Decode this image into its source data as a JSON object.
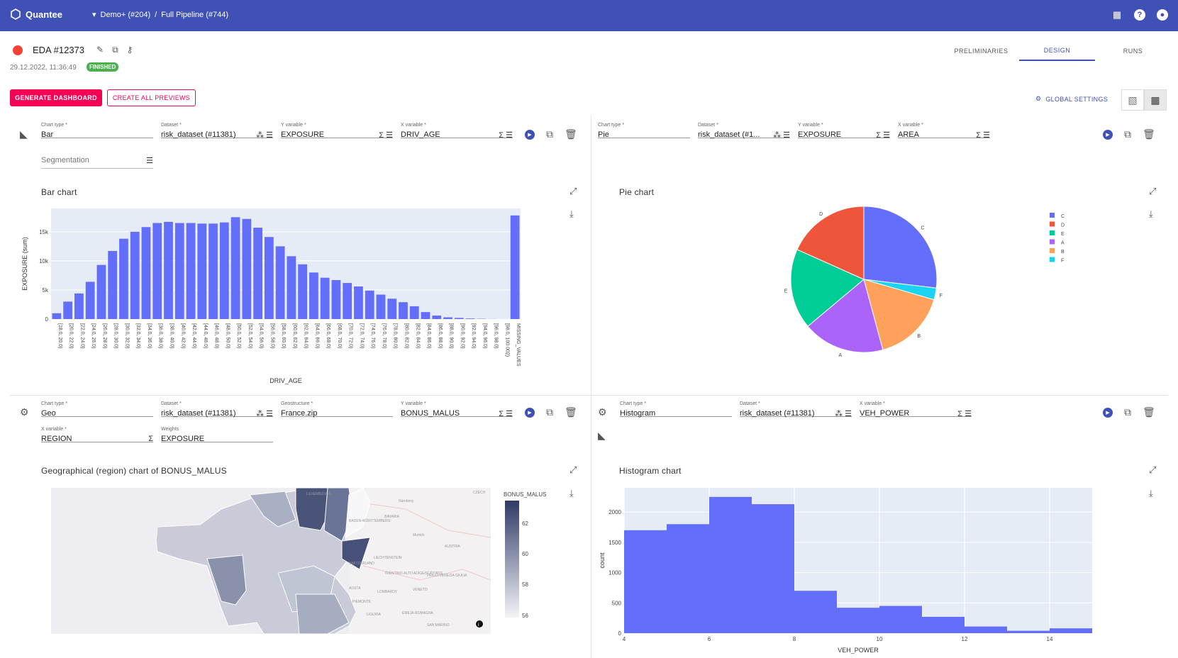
{
  "app": {
    "name": "Quantee",
    "breadcrumb": [
      "Demo+ (#204)",
      "/",
      "Full Pipeline (#744)"
    ]
  },
  "header": {
    "title": "EDA #12373",
    "date": "29.12.2022, 11:36:49",
    "status": "FINISHED"
  },
  "tabs": [
    "PRELIMINARIES",
    "DESIGN",
    "RUNS"
  ],
  "active_tab": "DESIGN",
  "actions": {
    "generate": "GENERATE DASHBOARD",
    "previews": "CREATE ALL PREVIEWS",
    "global": "GLOBAL SETTINGS"
  },
  "panels": [
    {
      "fields": [
        {
          "label": "Chart type *",
          "value": "Bar"
        },
        {
          "label": "Dataset *",
          "value": "risk_dataset (#11381)"
        },
        {
          "label": "Y variable *",
          "value": "EXPOSURE"
        },
        {
          "label": "X variable *",
          "value": "DRIV_AGE"
        },
        {
          "label": "",
          "value": "Segmentation"
        }
      ],
      "title": "Bar chart"
    },
    {
      "fields": [
        {
          "label": "Chart type *",
          "value": "Pie"
        },
        {
          "label": "Dataset *",
          "value": "risk_dataset (#1..."
        },
        {
          "label": "Y variable *",
          "value": "EXPOSURE"
        },
        {
          "label": "X variable *",
          "value": "AREA"
        }
      ],
      "title": "Pie chart"
    },
    {
      "fields": [
        {
          "label": "Chart type *",
          "value": "Geo"
        },
        {
          "label": "Dataset *",
          "value": "risk_dataset (#11381)"
        },
        {
          "label": "Geostructure *",
          "value": "France.zip"
        },
        {
          "label": "Y variable *",
          "value": "BONUS_MALUS"
        },
        {
          "label": "X variable *",
          "value": "REGION"
        },
        {
          "label": "Weights",
          "value": "EXPOSURE"
        }
      ],
      "title": "Geographical (region) chart of BONUS_MALUS"
    },
    {
      "fields": [
        {
          "label": "Chart type *",
          "value": "Histogram"
        },
        {
          "label": "Dataset *",
          "value": "risk_dataset (#11381)"
        },
        {
          "label": "X variable *",
          "value": "VEH_POWER"
        }
      ],
      "title": "Histogram chart"
    }
  ],
  "map_labels": [
    "LUXEMBOURG",
    "BAVARIA",
    "BADEN-WÜRTTEMBERG",
    "CZECH",
    "AUSTRIA",
    "SWITZERLAND",
    "LIECHTENSTEIN",
    "TRENTINO-ALTO ADIGE/SÜDTIROL",
    "FRIULI-VENEZIA GIULIA",
    "VENETO",
    "LOMBARDY",
    "PIEMONTE",
    "LIGURIA",
    "EMILIA-ROMAGNA",
    "AOSTA",
    "SAN MARINO",
    "Nürnberg",
    "Munich"
  ],
  "colors": {
    "topbar": "#3f51b5",
    "bar": "#636efa",
    "accent": "#f50057",
    "status": "#4caf50"
  },
  "chart_data": [
    {
      "type": "bar",
      "xlabel": "DRIV_AGE",
      "ylabel": "EXPOSURE (sum)",
      "ylim": [
        0,
        19000
      ],
      "yticks": [
        0,
        5000,
        10000,
        15000
      ],
      "ytick_labels": [
        "0",
        "5k",
        "10k",
        "15k"
      ],
      "categories": [
        "[18.0, 20.0)",
        "[20.0, 22.0)",
        "[22.0, 24.0)",
        "[24.0, 26.0)",
        "[26.0, 28.0)",
        "[28.0, 30.0)",
        "[30.0, 32.0)",
        "[32.0, 34.0)",
        "[34.0, 36.0)",
        "[36.0, 38.0)",
        "[38.0, 40.0)",
        "[40.0, 42.0)",
        "[42.0, 44.0)",
        "[44.0, 46.0)",
        "[46.0, 48.0)",
        "[48.0, 50.0)",
        "[50.0, 52.0)",
        "[52.0, 54.0)",
        "[54.0, 56.0)",
        "[56.0, 58.0)",
        "[58.0, 60.0)",
        "[60.0, 62.0)",
        "[62.0, 64.0)",
        "[64.0, 66.0)",
        "[66.0, 68.0)",
        "[68.0, 70.0)",
        "[70.0, 72.0)",
        "[72.0, 74.0)",
        "[74.0, 76.0)",
        "[76.0, 78.0)",
        "[78.0, 80.0)",
        "[80.0, 82.0)",
        "[82.0, 84.0)",
        "[84.0, 86.0)",
        "[86.0, 88.0)",
        "[88.0, 90.0)",
        "[90.0, 92.0)",
        "[92.0, 94.0)",
        "[94.0, 96.0)",
        "[96.0, 98.0)",
        "[98.0, 100.002)",
        "MISSING_VALUES"
      ],
      "values": [
        1000,
        3000,
        4400,
        6400,
        9300,
        11700,
        13800,
        15000,
        15800,
        16500,
        16700,
        16500,
        16500,
        16400,
        16400,
        16600,
        17500,
        17200,
        15700,
        14100,
        12500,
        10800,
        9400,
        8000,
        7100,
        6700,
        6200,
        5600,
        4900,
        4200,
        3500,
        2900,
        2200,
        1200,
        600,
        300,
        200,
        100,
        50,
        20,
        10,
        17800
      ]
    },
    {
      "type": "pie",
      "categories": [
        "C",
        "F",
        "B",
        "A",
        "E",
        "D"
      ],
      "values": [
        26.9,
        2.6,
        16.3,
        18.1,
        17.8,
        18.3
      ],
      "legend": [
        "C",
        "D",
        "E",
        "A",
        "B",
        "F"
      ],
      "colors": {
        "C": "#636efa",
        "D": "#ef553b",
        "E": "#00cc96",
        "A": "#ab63fa",
        "B": "#ffa15a",
        "F": "#19d3f3"
      }
    },
    {
      "type": "heatmap",
      "colorbar_title": "BONUS_MALUS",
      "colorbar_ticks": [
        56,
        58,
        60,
        62
      ]
    },
    {
      "type": "bar",
      "subtype": "histogram",
      "xlabel": "VEH_POWER",
      "ylabel": "count",
      "xlim": [
        4,
        15
      ],
      "ylim": [
        0,
        2400
      ],
      "xticks": [
        4,
        6,
        8,
        10,
        12,
        14
      ],
      "yticks": [
        0,
        500,
        1000,
        1500,
        2000
      ],
      "bins": [
        [
          4,
          5
        ],
        [
          5,
          6
        ],
        [
          6,
          7
        ],
        [
          7,
          8
        ],
        [
          8,
          9
        ],
        [
          9,
          10
        ],
        [
          10,
          11
        ],
        [
          11,
          12
        ],
        [
          12,
          13
        ],
        [
          13,
          14
        ],
        [
          14,
          15
        ]
      ],
      "values": [
        1700,
        1800,
        2250,
        2130,
        700,
        420,
        450,
        270,
        110,
        40,
        80
      ]
    }
  ]
}
